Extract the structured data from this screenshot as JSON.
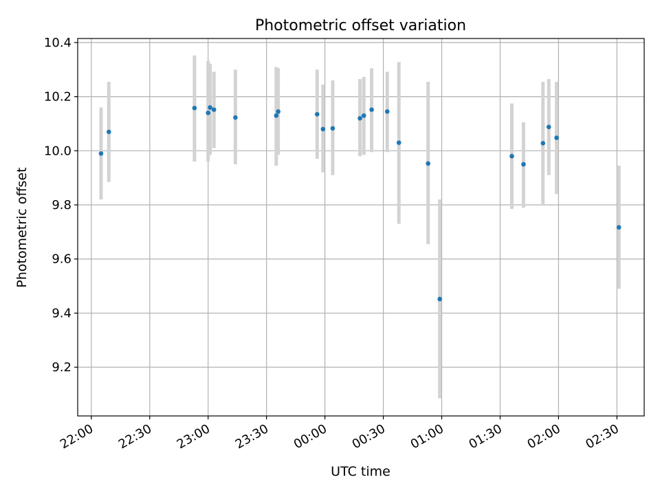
{
  "chart_data": {
    "type": "scatter",
    "title": "Photometric offset variation",
    "xlabel": "UTC time",
    "ylabel": "Photometric offset",
    "grid": true,
    "legend": "none",
    "xlim": [
      "21:53",
      "02:44"
    ],
    "ylim": [
      9.02,
      10.415
    ],
    "x_ticks": [
      "22:00",
      "22:30",
      "23:00",
      "23:30",
      "00:00",
      "00:30",
      "01:00",
      "01:30",
      "02:00",
      "02:30"
    ],
    "y_ticks": [
      "9.2",
      "9.4",
      "9.6",
      "9.8",
      "10.0",
      "10.2",
      "10.4"
    ],
    "marker_color": "#1f77b4",
    "errorbar_color": "#d3d3d3",
    "points": [
      {
        "t": "22:05",
        "y": 9.99,
        "ylo": 9.82,
        "yhi": 10.16
      },
      {
        "t": "22:09",
        "y": 10.07,
        "ylo": 9.885,
        "yhi": 10.255
      },
      {
        "t": "22:53",
        "y": 10.158,
        "ylo": 9.96,
        "yhi": 10.352
      },
      {
        "t": "23:00",
        "y": 10.14,
        "ylo": 9.96,
        "yhi": 10.332
      },
      {
        "t": "23:01",
        "y": 10.16,
        "ylo": 9.985,
        "yhi": 10.322
      },
      {
        "t": "23:03",
        "y": 10.152,
        "ylo": 10.01,
        "yhi": 10.292
      },
      {
        "t": "23:14",
        "y": 10.123,
        "ylo": 9.95,
        "yhi": 10.3
      },
      {
        "t": "23:35",
        "y": 10.13,
        "ylo": 9.945,
        "yhi": 10.31
      },
      {
        "t": "23:36",
        "y": 10.145,
        "ylo": 9.985,
        "yhi": 10.305
      },
      {
        "t": "23:56",
        "y": 10.135,
        "ylo": 9.97,
        "yhi": 10.3
      },
      {
        "t": "23:59",
        "y": 10.08,
        "ylo": 9.92,
        "yhi": 10.245
      },
      {
        "t": "00:04",
        "y": 10.083,
        "ylo": 9.91,
        "yhi": 10.26
      },
      {
        "t": "00:18",
        "y": 10.12,
        "ylo": 9.98,
        "yhi": 10.265
      },
      {
        "t": "00:20",
        "y": 10.13,
        "ylo": 9.985,
        "yhi": 10.273
      },
      {
        "t": "00:24",
        "y": 10.152,
        "ylo": 9.995,
        "yhi": 10.305
      },
      {
        "t": "00:32",
        "y": 10.145,
        "ylo": 9.995,
        "yhi": 10.292
      },
      {
        "t": "00:38",
        "y": 10.03,
        "ylo": 9.73,
        "yhi": 10.328
      },
      {
        "t": "00:53",
        "y": 9.953,
        "ylo": 9.655,
        "yhi": 10.255
      },
      {
        "t": "00:59",
        "y": 9.452,
        "ylo": 9.085,
        "yhi": 9.82
      },
      {
        "t": "01:36",
        "y": 9.98,
        "ylo": 9.785,
        "yhi": 10.175
      },
      {
        "t": "01:42",
        "y": 9.95,
        "ylo": 9.79,
        "yhi": 10.105
      },
      {
        "t": "01:52",
        "y": 10.028,
        "ylo": 9.8,
        "yhi": 10.255
      },
      {
        "t": "01:55",
        "y": 10.088,
        "ylo": 9.91,
        "yhi": 10.265
      },
      {
        "t": "01:59",
        "y": 10.048,
        "ylo": 9.84,
        "yhi": 10.255
      },
      {
        "t": "02:31",
        "y": 9.717,
        "ylo": 9.49,
        "yhi": 9.945
      }
    ]
  }
}
